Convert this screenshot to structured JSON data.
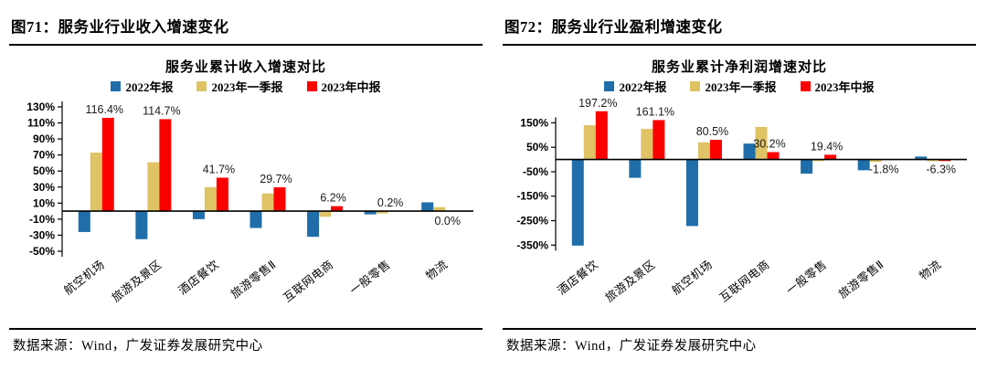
{
  "figures": [
    {
      "header": "图71：服务业行业收入增速变化",
      "source": "数据来源：Wind，广发证券发展研究中心"
    },
    {
      "header": "图72：服务业行业盈利增速变化",
      "source": "数据来源：Wind，广发证券发展研究中心"
    }
  ],
  "colors": {
    "bar_2022_annual": "#1F6EA9",
    "bar_2023_q1": "#DFC365",
    "bar_2023_h1": "#FC0000",
    "axis": "#000000"
  },
  "chart_data": [
    {
      "type": "bar",
      "title": "服务业累计收入增速对比",
      "categories": [
        "航空机场",
        "旅游及景区",
        "酒店餐饮",
        "旅游零售Ⅱ",
        "互联网电商",
        "一般零售",
        "物流"
      ],
      "series": [
        {
          "name": "2022年报",
          "color": "#1F6EA9",
          "values": [
            -26,
            -35,
            -10,
            -21,
            -32,
            -4,
            11
          ]
        },
        {
          "name": "2023年一季报",
          "color": "#DFC365",
          "values": [
            73,
            61,
            30,
            22,
            -7,
            -3,
            5
          ]
        },
        {
          "name": "2023年中报",
          "color": "#FC0000",
          "values": [
            116.4,
            114.7,
            41.7,
            29.7,
            6.2,
            0.2,
            0.0
          ]
        }
      ],
      "data_labels": {
        "series": "2023年中报",
        "values": [
          "116.4%",
          "114.7%",
          "41.7%",
          "29.7%",
          "6.2%",
          "0.2%",
          "0.0%"
        ],
        "position": [
          "above",
          "above",
          "above",
          "above",
          "above",
          "above",
          "below"
        ]
      },
      "ylim": [
        -50,
        130
      ],
      "yticks": [
        130,
        110,
        90,
        70,
        50,
        30,
        10,
        -10,
        -30,
        -50
      ],
      "ytick_suffix": "%",
      "grid": false,
      "legend_position": "top"
    },
    {
      "type": "bar",
      "title": "服务业累计净利润增速对比",
      "categories": [
        "酒店餐饮",
        "旅游及景区",
        "航空机场",
        "互联网电商",
        "一般零售",
        "旅游零售Ⅱ",
        "物流"
      ],
      "series": [
        {
          "name": "2022年报",
          "color": "#1F6EA9",
          "values": [
            -352,
            -75,
            -272,
            65,
            -58,
            -44,
            12
          ]
        },
        {
          "name": "2023年一季报",
          "color": "#DFC365",
          "values": [
            140,
            125,
            70,
            133,
            -7,
            -10,
            -7
          ]
        },
        {
          "name": "2023年中报",
          "color": "#FC0000",
          "values": [
            197.2,
            161.1,
            80.5,
            30.2,
            19.4,
            -1.8,
            -6.3
          ]
        }
      ],
      "data_labels": {
        "series": "2023年中报",
        "values": [
          "197.2%",
          "161.1%",
          "80.5%",
          "30.2%",
          "19.4%",
          "-1.8%",
          "-6.3%"
        ],
        "position": [
          "above",
          "above",
          "above",
          "above",
          "above",
          "below",
          "below"
        ]
      },
      "ylim": [
        -375,
        215
      ],
      "yticks": [
        150,
        50,
        -50,
        -150,
        -250,
        -350
      ],
      "ytick_suffix": "%",
      "grid": false,
      "legend_position": "top"
    }
  ]
}
